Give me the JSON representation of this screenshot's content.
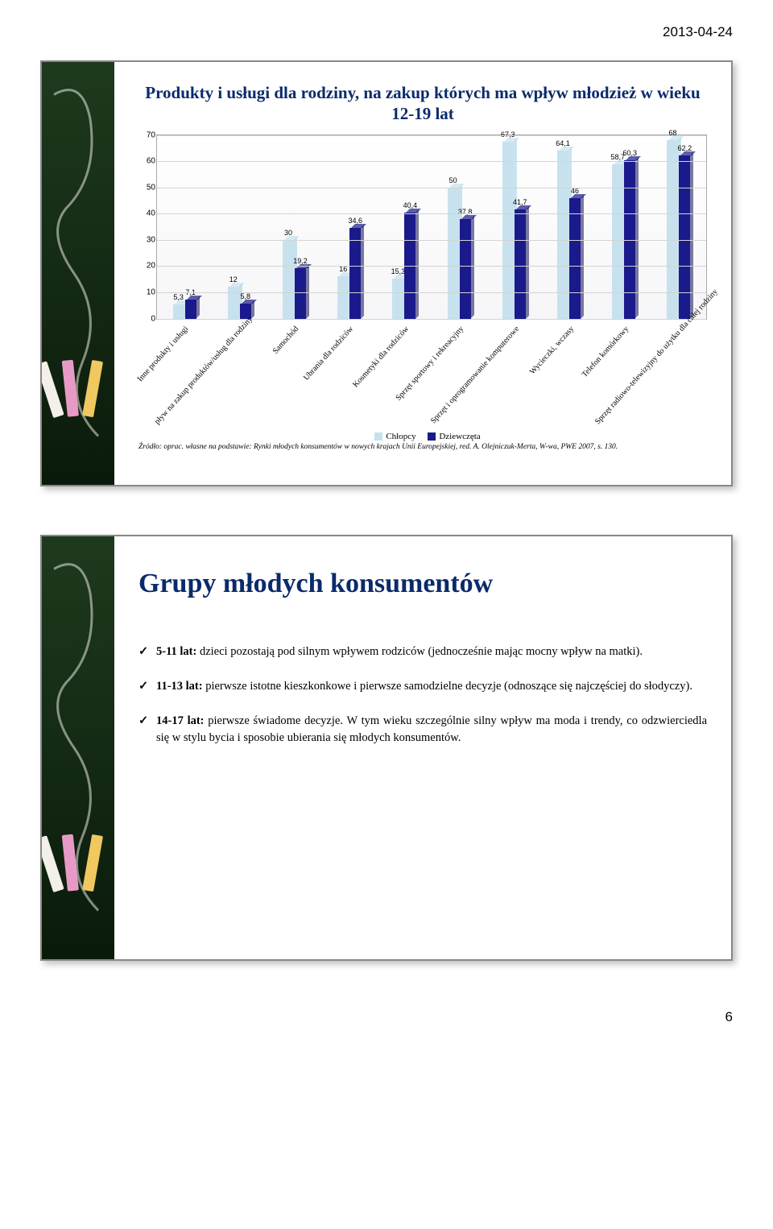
{
  "date": "2013-04-24",
  "pagenum": "6",
  "slide1": {
    "title": "Produkty i usługi dla rodziny, na zakup których ma wpływ młodzież w wieku 12-19 lat",
    "ymax": 70,
    "ytick_step": 10,
    "series": {
      "boys": {
        "label": "Chłopcy",
        "color": "#c7e2ee",
        "color_dark": "#9fcde0"
      },
      "girls": {
        "label": "Dziewczęta",
        "color": "#1a1a8c",
        "color_dark": "#0e0e55"
      }
    },
    "categories": [
      {
        "label": "Inne produkty i usługi",
        "boys": 5.3,
        "girls": 7.1
      },
      {
        "label": "pływ na zakup produktów/usług dla rodziny",
        "boys": 12,
        "girls": 5.8
      },
      {
        "label": "Samochód",
        "boys": 30,
        "girls": 19.2
      },
      {
        "label": "Ubrania dla rodziców",
        "boys": 16,
        "girls": 34.6
      },
      {
        "label": "Kosmetyki dla rodziców",
        "boys": 15.3,
        "girls": 40.4
      },
      {
        "label": "Sprzęt sportowy i rekreacyjny",
        "boys": 50,
        "girls": 37.8
      },
      {
        "label": "Sprzęt i oprogramowanie komputerowe",
        "boys": 67.3,
        "girls": 41.7
      },
      {
        "label": "Wycieczki, wczasy",
        "boys": 64.1,
        "girls": 46
      },
      {
        "label": "Telefon komórkowy",
        "boys": 58.7,
        "girls": 60.3
      },
      {
        "label": "Sprzęt radiowo-telewizyjny do użytku dla całej rodziny",
        "boys": 68,
        "girls": 62.2
      }
    ],
    "source": "Źródło: oprac. własne na podstawie: Rynki młodych konsumentów w nowych krajach Unii Europejskiej, red. A. Olejniczuk-Merta, W-wa, PWE 2007, s. 130."
  },
  "slide2": {
    "title": "Grupy młodych konsumentów",
    "bullets": [
      {
        "bold": "5-11 lat:",
        "rest": " dzieci pozostają pod silnym wpływem rodziców (jednocześnie mając mocny wpływ na matki)."
      },
      {
        "bold": "11-13 lat:",
        "rest": " pierwsze istotne kieszkonkowe i pierwsze samodzielne decyzje (odnoszące się najczęściej do słodyczy)."
      },
      {
        "bold": "14-17 lat:",
        "rest": " pierwsze świadome decyzje. W tym wieku szczególnie silny wpływ ma moda i trendy, co odzwierciedla się w stylu bycia i sposobie ubierania się młodych konsumentów."
      }
    ]
  }
}
